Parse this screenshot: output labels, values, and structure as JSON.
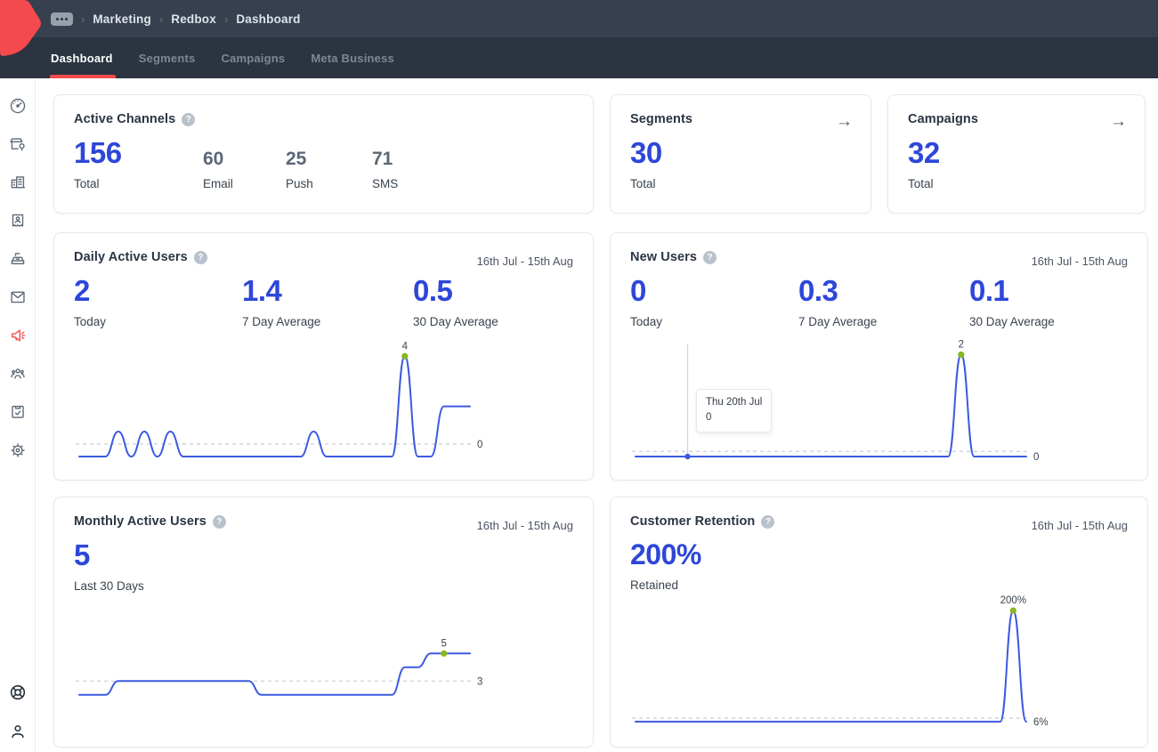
{
  "header": {
    "breadcrumb": {
      "more_label": "more-options",
      "separator": "›",
      "items": [
        "Marketing",
        "Redbox",
        "Dashboard"
      ]
    },
    "tabs": [
      {
        "label": "Dashboard",
        "active": true
      },
      {
        "label": "Segments",
        "active": false
      },
      {
        "label": "Campaigns",
        "active": false
      },
      {
        "label": "Meta Business",
        "active": false
      }
    ]
  },
  "sidebar": {
    "icons": [
      "dashboard-gauge",
      "storefront-locations",
      "company-buildings",
      "billing-receipt",
      "pos-register",
      "email-messages",
      "campaigns-megaphone",
      "audience-people",
      "plans-clipboard",
      "settings-gear"
    ],
    "active_icon": "campaigns-megaphone",
    "bottom_icons": [
      "support-lifering",
      "account-person"
    ]
  },
  "cards": {
    "active_channels": {
      "title": "Active Channels",
      "total": "156",
      "total_label": "Total",
      "breakdown": [
        {
          "value": "60",
          "label": "Email"
        },
        {
          "value": "25",
          "label": "Push"
        },
        {
          "value": "71",
          "label": "SMS"
        }
      ]
    },
    "segments": {
      "title": "Segments",
      "total": "30",
      "total_label": "Total"
    },
    "campaigns": {
      "title": "Campaigns",
      "total": "32",
      "total_label": "Total"
    },
    "daily_active_users": {
      "title": "Daily Active Users",
      "date_range": "16th Jul - 15th Aug",
      "stats": [
        {
          "value": "2",
          "label": "Today"
        },
        {
          "value": "1.4",
          "label": "7 Day Average"
        },
        {
          "value": "0.5",
          "label": "30 Day Average"
        }
      ]
    },
    "new_users": {
      "title": "New Users",
      "date_range": "16th Jul - 15th Aug",
      "stats": [
        {
          "value": "0",
          "label": "Today"
        },
        {
          "value": "0.3",
          "label": "7 Day Average"
        },
        {
          "value": "0.1",
          "label": "30 Day Average"
        }
      ]
    },
    "monthly_active_users": {
      "title": "Monthly Active Users",
      "date_range": "16th Jul - 15th Aug",
      "stats": [
        {
          "value": "5",
          "label": "Last 30 Days"
        }
      ]
    },
    "customer_retention": {
      "title": "Customer Retention",
      "date_range": "16th Jul - 15th Aug",
      "stats": [
        {
          "value": "200%",
          "label": "Retained"
        }
      ]
    }
  },
  "chart_data": [
    {
      "id": "daily_active_users",
      "type": "line",
      "title": "Daily Active Users",
      "x_start": "16th Jul",
      "x_end": "15th Aug",
      "grid": false,
      "legend": "none",
      "values": [
        0,
        0,
        0,
        1,
        0,
        1,
        0,
        1,
        0,
        0,
        0,
        0,
        0,
        0,
        0,
        0,
        0,
        0,
        1,
        0,
        0,
        0,
        0,
        0,
        0,
        4,
        0,
        0,
        2,
        2,
        2
      ],
      "peak_index": 25,
      "peak_label": "4",
      "right_label": "0",
      "right_label_value": 0.5,
      "reference_value": 0.5,
      "ylim_render": [
        0,
        4.4
      ],
      "pad_top": 10,
      "pad_bottom": 16,
      "line_color": "#3d5ae0",
      "marker_color": "#8ab71f"
    },
    {
      "id": "new_users",
      "type": "line",
      "title": "New Users",
      "x_start": "16th Jul",
      "x_end": "15th Aug",
      "grid": false,
      "legend": "none",
      "values": [
        0,
        0,
        0,
        0,
        0,
        0,
        0,
        0,
        0,
        0,
        0,
        0,
        0,
        0,
        0,
        0,
        0,
        0,
        0,
        0,
        0,
        0,
        0,
        0,
        0,
        2,
        0,
        0,
        0,
        0,
        0
      ],
      "peak_index": 25,
      "peak_label": "2",
      "right_label": "0",
      "right_label_value": 0,
      "reference_value": 0.1,
      "hover": {
        "index": 4,
        "date": "Thu 20th Jul",
        "value": "0"
      },
      "ylim_render": [
        0,
        2.2
      ],
      "pad_top": 8,
      "pad_bottom": 16,
      "line_color": "#3d5ae0",
      "marker_color": "#8ab71f"
    },
    {
      "id": "monthly_active_users",
      "type": "line",
      "title": "Monthly Active Users",
      "x_start": "16th Jul",
      "x_end": "15th Aug",
      "grid": false,
      "legend": "none",
      "values": [
        2,
        2,
        2,
        3,
        3,
        3,
        3,
        3,
        3,
        3,
        3,
        3,
        3,
        3,
        2,
        2,
        2,
        2,
        2,
        2,
        2,
        2,
        2,
        2,
        2,
        4,
        4,
        5,
        5,
        5,
        5
      ],
      "peak_index": 28,
      "peak_label": "5",
      "right_label": "3",
      "right_label_value": 3,
      "reference_value": 3,
      "ylim_render": [
        -0.4,
        7.6
      ],
      "pad_top": 10,
      "pad_bottom": 16,
      "line_color": "#3d5ae0",
      "marker_color": "#8ab71f"
    },
    {
      "id": "customer_retention",
      "type": "line",
      "title": "Customer Retention",
      "unit": "%",
      "x_start": "16th Jul",
      "x_end": "15th Aug",
      "grid": false,
      "legend": "none",
      "values": [
        6,
        6,
        6,
        6,
        6,
        6,
        6,
        6,
        6,
        6,
        6,
        6,
        6,
        6,
        6,
        6,
        6,
        6,
        6,
        6,
        6,
        6,
        6,
        6,
        6,
        6,
        6,
        6,
        6,
        200,
        6
      ],
      "peak_index": 29,
      "peak_label": "200%",
      "right_label": "6%",
      "right_label_value": 6,
      "reference_value": 12,
      "ylim_render": [
        -2,
        211
      ],
      "pad_top": 10,
      "pad_bottom": 18,
      "line_color": "#3d5ae0",
      "marker_color": "#8ab71f"
    }
  ],
  "colors": {
    "accent_blue": "#2d47d8",
    "chart_line_blue": "#3d5ae0",
    "marker_green": "#8ab71f",
    "accent_red": "#f4494d",
    "header_bg": "#36404e",
    "tabbar_bg": "#2b3440",
    "reference_dash": "#c9ced6"
  }
}
